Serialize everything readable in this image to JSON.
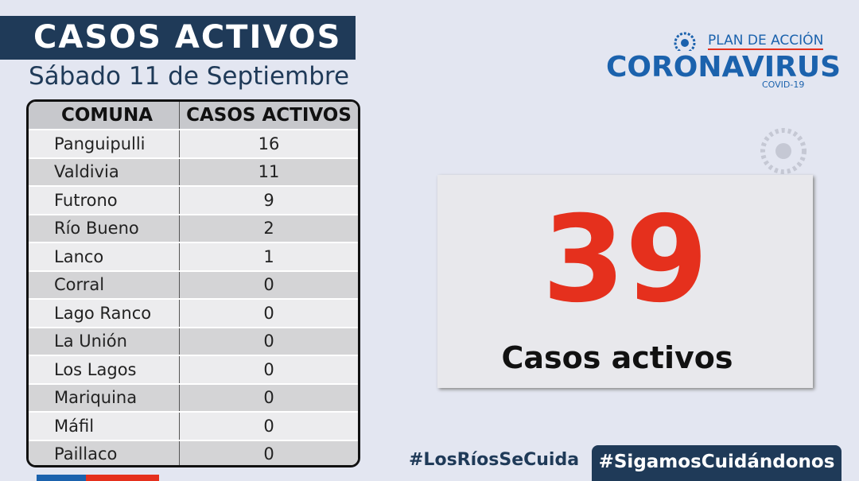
{
  "header": {
    "title": "CASOS ACTIVOS",
    "date": "Sábado 11 de Septiembre"
  },
  "logo": {
    "line1": "PLAN DE ACCIÓN",
    "line2": "CORONAVIRUS",
    "line3": "COVID-19"
  },
  "table": {
    "headers": [
      "COMUNA",
      "CASOS ACTIVOS"
    ],
    "rows": [
      [
        "Panguipulli",
        16
      ],
      [
        "Valdivia",
        11
      ],
      [
        "Futrono",
        9
      ],
      [
        "Río Bueno",
        2
      ],
      [
        "Lanco",
        1
      ],
      [
        "Corral",
        0
      ],
      [
        "Lago Ranco",
        0
      ],
      [
        "La Unión",
        0
      ],
      [
        "Los Lagos",
        0
      ],
      [
        "Mariquina",
        0
      ],
      [
        "Máfil",
        0
      ],
      [
        "Paillaco",
        0
      ]
    ]
  },
  "summary": {
    "total": 39,
    "label": "Casos activos"
  },
  "footer": {
    "hashtag1": "#LosRíosSeCuida",
    "hashtag2": "#SigamosCuidándonos"
  }
}
